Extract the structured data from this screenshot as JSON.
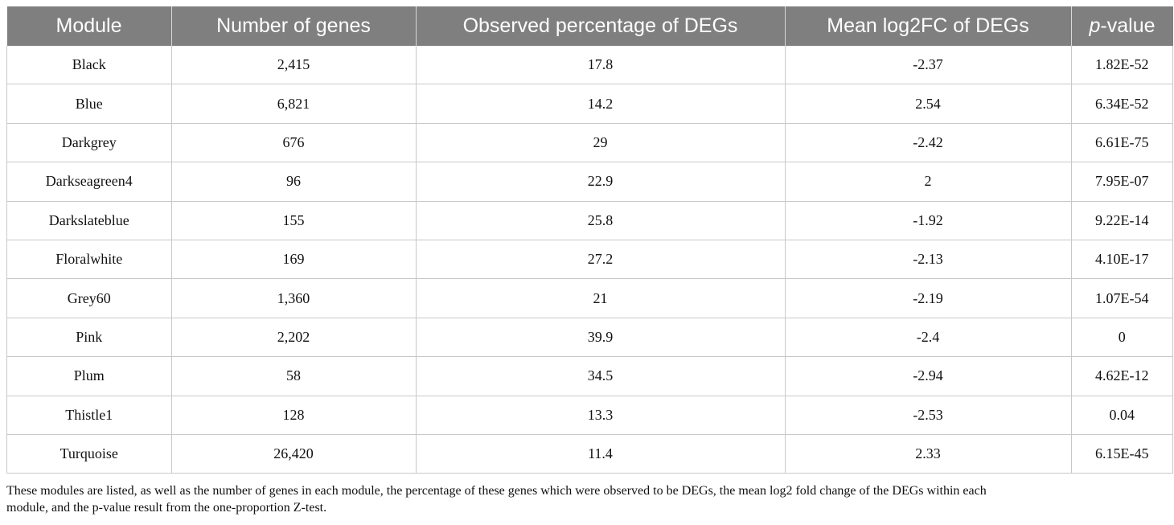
{
  "table": {
    "headers": [
      "Module",
      "Number of genes",
      "Observed percentage of DEGs",
      "Mean log2FC of DEGs"
    ],
    "pvalue_header": {
      "italic": "p",
      "rest": "-value"
    },
    "rows": [
      [
        "Black",
        "2,415",
        "17.8",
        "-2.37",
        "1.82E-52"
      ],
      [
        "Blue",
        "6,821",
        "14.2",
        "2.54",
        "6.34E-52"
      ],
      [
        "Darkgrey",
        "676",
        "29",
        "-2.42",
        "6.61E-75"
      ],
      [
        "Darkseagreen4",
        "96",
        "22.9",
        "2",
        "7.95E-07"
      ],
      [
        "Darkslateblue",
        "155",
        "25.8",
        "-1.92",
        "9.22E-14"
      ],
      [
        "Floralwhite",
        "169",
        "27.2",
        "-2.13",
        "4.10E-17"
      ],
      [
        "Grey60",
        "1,360",
        "21",
        "-2.19",
        "1.07E-54"
      ],
      [
        "Pink",
        "2,202",
        "39.9",
        "-2.4",
        "0"
      ],
      [
        "Plum",
        "58",
        "34.5",
        "-2.94",
        "4.62E-12"
      ],
      [
        "Thistle1",
        "128",
        "13.3",
        "-2.53",
        "0.04"
      ],
      [
        "Turquoise",
        "26,420",
        "11.4",
        "2.33",
        "6.15E-45"
      ]
    ]
  },
  "footnote": {
    "line1": "These modules are listed, as well as the number of genes in each module, the percentage of these genes which were observed to be DEGs, the mean log2 fold change of the DEGs within each",
    "line2": "module, and the p-value result from the one-proportion Z-test."
  },
  "colors": {
    "header_bg": "#7f7f7f",
    "header_text": "#ffffff",
    "border": "#c8c8c8"
  }
}
